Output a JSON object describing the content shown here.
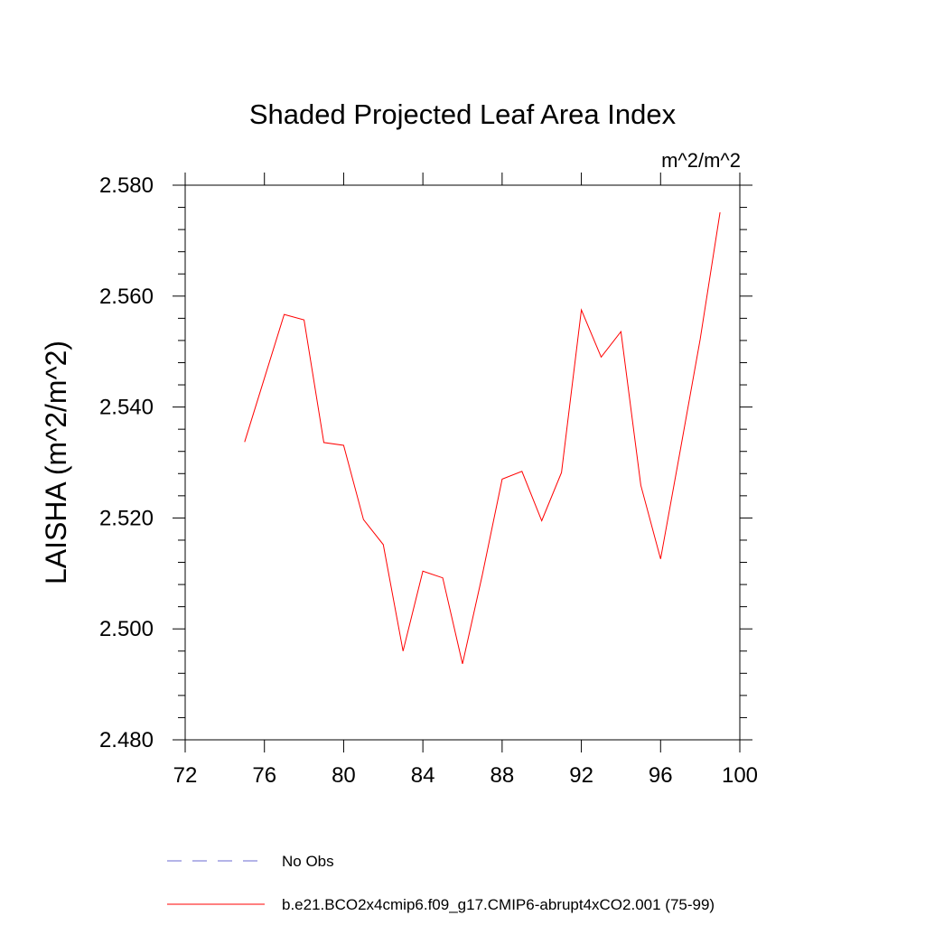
{
  "chart_data": {
    "type": "line",
    "title": "Shaded Projected Leaf Area Index",
    "units_label": "m^2/m^2",
    "xlabel": "",
    "ylabel": "LAISHA  (m^2/m^2)",
    "xlim": [
      72,
      100
    ],
    "ylim": [
      2.48,
      2.58
    ],
    "x_ticks": [
      "72",
      "76",
      "80",
      "84",
      "88",
      "92",
      "96",
      "100"
    ],
    "y_ticks": [
      "2.480",
      "2.500",
      "2.520",
      "2.540",
      "2.560",
      "2.580"
    ],
    "series": [
      {
        "name": "b.e21.BCO2x4cmip6.f09_g17.CMIP6-abrupt4xCO2.001 (75-99)",
        "color": "#ff0000",
        "style": "solid",
        "x": [
          75,
          76,
          77,
          78,
          79,
          80,
          81,
          82,
          83,
          84,
          85,
          86,
          87,
          88,
          89,
          90,
          91,
          92,
          93,
          94,
          95,
          96,
          97,
          98,
          99
        ],
        "values": [
          2.5337,
          2.5452,
          2.5567,
          2.5557,
          2.5336,
          2.5331,
          2.5197,
          2.5152,
          2.496,
          2.5104,
          2.5092,
          2.4937,
          2.5097,
          2.527,
          2.5284,
          2.5195,
          2.5282,
          2.5575,
          2.549,
          2.5536,
          2.5259,
          2.5126,
          2.5323,
          2.5522,
          2.5751
        ]
      }
    ],
    "legend": [
      {
        "label": "No Obs",
        "color": "#6a6ad0",
        "style": "dashed"
      },
      {
        "label": "b.e21.BCO2x4cmip6.f09_g17.CMIP6-abrupt4xCO2.001 (75-99)",
        "color": "#ff0000",
        "style": "solid"
      }
    ]
  }
}
